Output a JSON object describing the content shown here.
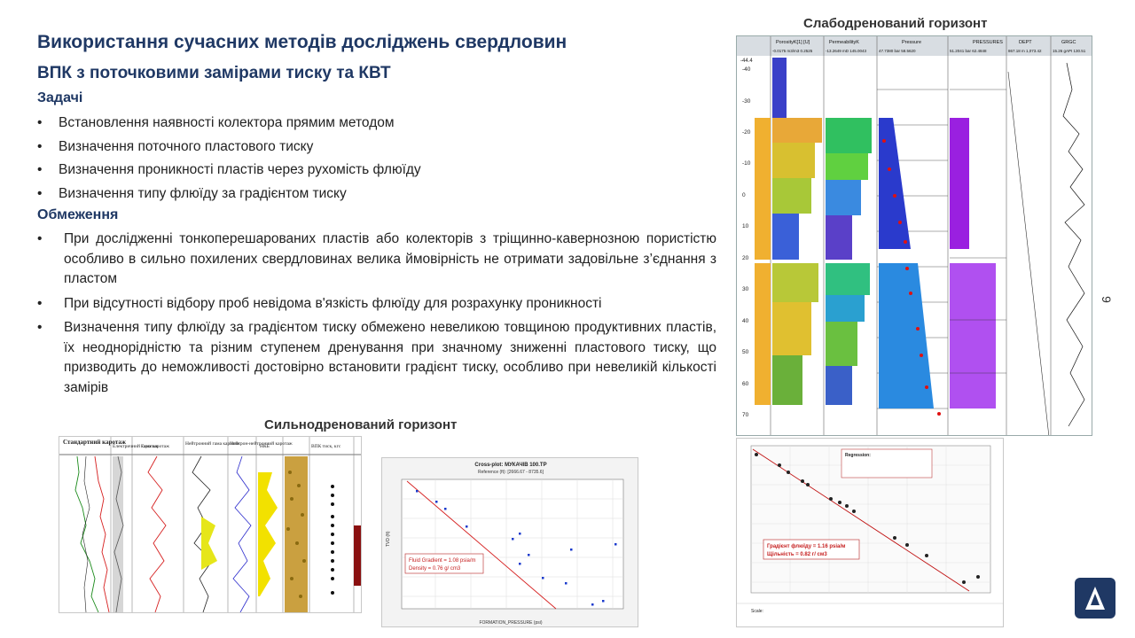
{
  "slide": {
    "title": "Використання сучасних методів досліджень свердловин",
    "subtitle": "ВПК з поточковими замірами тиску та КВТ",
    "page_number": "9",
    "logo_icon": "triangle-logo-icon"
  },
  "tasks": {
    "heading": "Задачі",
    "items": [
      "Встановлення наявності колектора прямим методом",
      "Визначення поточного пластового тиску",
      "Визначення проникності пластів через рухомість флюїду",
      "Визначення типу флюїду за градієнтом тиску"
    ]
  },
  "limitations": {
    "heading": "Обмеження",
    "items": [
      "При дослідженні тонкоперешарованих пластів або колекторів з тріщинно-кавернозною пористістю особливо в сильно похилених свердловинах велика ймовірність не отримати задовільне з’єднання з пластом",
      "При відсутності відбору проб невідома в'язкість флюїду для розрахунку проникності",
      "Визначення типу флюїду за градієнтом тиску обмежено невеликою товщиною продуктивних пластів, їх неоднорідністю та різним ступенем дренування при значному зниженні пластового тиску, що призводить до неможливості достовірно встановити градієнт тиску, особливо при невеликій кількості замірів"
    ]
  },
  "captions": {
    "strong": "Сильнодренований горизонт",
    "weak": "Слабодренований горизонт"
  },
  "log_strong": {
    "headers": [
      "Стандартний каротаж",
      "Електричний каротаж",
      "Гама каротаж",
      "Нейтронний гама каротаж",
      "Нейтрон-нейтронний каротаж",
      "НКБ",
      "ВПК тиск, кгс"
    ]
  },
  "crossplot_strong": {
    "title": "Cross-plot: МУКАЧІВ 100.ТР",
    "subtitle": "Reference (ft): [2666.67 - 8735.6]",
    "x_label": "FORMATION_PRESSURE (psi)",
    "y_label": "TVD (ft)",
    "gradient": "Fluid Gradient = 1.08 psia/m",
    "density": "Density = 0.76 g/ cm3"
  },
  "weak_log": {
    "headers": [
      "PorosityK[1] [U]",
      "PermeabilityK",
      "Pressure",
      "PRESSURES",
      "DEPT",
      "GRGC"
    ],
    "ranges": [
      "-0.0175 m3/m3 0.2525",
      "-13.2649 mD 145.0043",
      "47.7380 bar 58.5620",
      "51.2041 bar 62.4848",
      "867.18 m 1,073.42",
      "15.26 gAPI 130.51"
    ],
    "depth_ticks": [
      "-40",
      "-30",
      "-20",
      "-10",
      "0",
      "10",
      "20",
      "30",
      "40",
      "50",
      "60",
      "70"
    ],
    "top_value": "-44.4"
  },
  "crossplot_weak": {
    "regression_label": "Regression:",
    "gradient": "Градієнт флюїду = 1.16 psia/м",
    "density": "Щільність = 0.82 г/ см3",
    "scale_label": "Scale:"
  }
}
